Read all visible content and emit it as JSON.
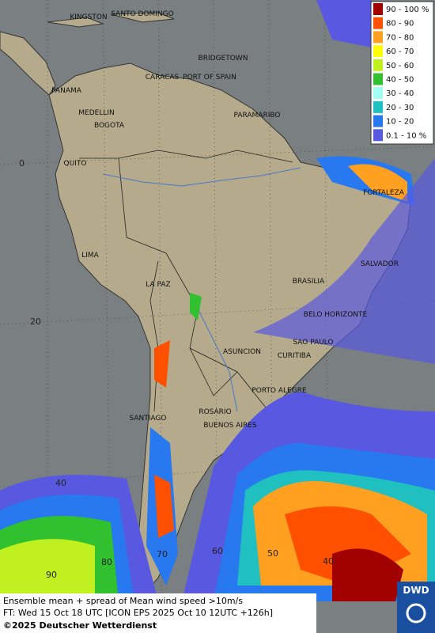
{
  "legend": {
    "entries": [
      {
        "label": "90 - 100 %",
        "color": "#a00000"
      },
      {
        "label": "80 - 90",
        "color": "#ff5000"
      },
      {
        "label": "70 - 80",
        "color": "#ffa020"
      },
      {
        "label": "60 - 70",
        "color": "#ffff00"
      },
      {
        "label": "50 - 60",
        "color": "#c0f020"
      },
      {
        "label": "40 - 50",
        "color": "#30c030"
      },
      {
        "label": "30 - 40",
        "color": "#a0fff0"
      },
      {
        "label": "20 - 30",
        "color": "#20c0c0"
      },
      {
        "label": "10 - 20",
        "color": "#2878f0"
      },
      {
        "label": "0.1 - 10 %",
        "color": "#5858e0"
      }
    ]
  },
  "cities": [
    "KINGSTON",
    "SANTO DOMINGO",
    "BRIDGETOWN",
    "CARACAS",
    "PORT OF SPAIN",
    "PANAMA",
    "MEDELLIN",
    "BOGOTA",
    "PARAMARIBO",
    "QUITO",
    "FORTALEZA",
    "LIMA",
    "SALVADOR",
    "LA PAZ",
    "BRASILIA",
    "BELO HORIZONTE",
    "SAO PAULO",
    "ASUNCION",
    "CURITIBA",
    "PORTO ALEGRE",
    "ROSARIO",
    "SANTIAGO",
    "BUENOS AIRES"
  ],
  "graticule": {
    "latitudes": [
      "0",
      "20",
      "40"
    ],
    "longitudes": [
      "90",
      "80",
      "70",
      "60",
      "50",
      "40"
    ]
  },
  "footer": {
    "line1": "Ensemble mean + spread of Mean wind speed >10m/s",
    "line2": "FT: Wed 15 Oct 18 UTC [ICON EPS 2025 Oct 10 12UTC +126h]",
    "copyright": "©2025 Deutscher Wetterdienst"
  },
  "logo": "DWD"
}
